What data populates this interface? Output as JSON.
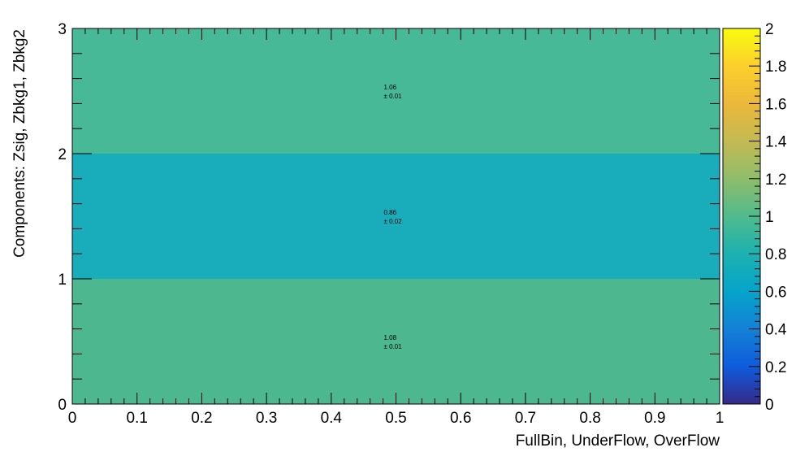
{
  "chart_data": {
    "type": "heatmap",
    "title": "",
    "xlabel": "FullBin, UnderFlow, OverFlow",
    "ylabel": "Components: Zsig, Zbkg1, Zbkg2",
    "xlim": [
      0,
      1
    ],
    "ylim": [
      0,
      3
    ],
    "zlim": [
      0,
      2
    ],
    "x_ticks": [
      "0",
      "0.1",
      "0.2",
      "0.3",
      "0.4",
      "0.5",
      "0.6",
      "0.7",
      "0.8",
      "0.9",
      "1"
    ],
    "y_ticks": [
      "0",
      "1",
      "2",
      "3"
    ],
    "z_ticks": [
      "0",
      "0.2",
      "0.4",
      "0.6",
      "0.8",
      "1",
      "1.2",
      "1.4",
      "1.6",
      "1.8",
      "2"
    ],
    "colormap": "parula",
    "grid": false,
    "cells": [
      {
        "x_range": [
          0,
          1
        ],
        "y_range": [
          0,
          1
        ],
        "value": 1.08,
        "error": 0.01,
        "label_value": "1.08",
        "label_error": "± 0.01",
        "color": "#4db88f"
      },
      {
        "x_range": [
          0,
          1
        ],
        "y_range": [
          1,
          2
        ],
        "value": 0.86,
        "error": 0.02,
        "label_value": "0.86",
        "label_error": "± 0.02",
        "color": "#19acba"
      },
      {
        "x_range": [
          0,
          1
        ],
        "y_range": [
          2,
          3
        ],
        "value": 1.06,
        "error": 0.01,
        "label_value": "1.06",
        "label_error": "± 0.01",
        "color": "#48b996"
      }
    ]
  }
}
